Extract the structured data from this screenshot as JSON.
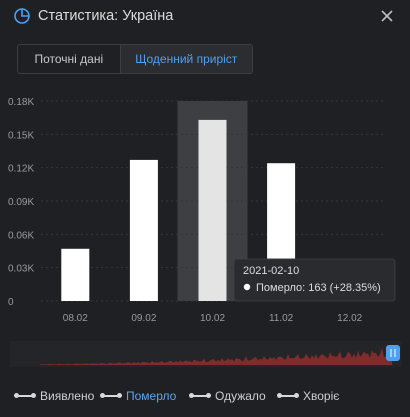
{
  "header": {
    "title": "Статистика: Україна",
    "icon": "pie-chart-icon",
    "close_icon": "close-icon"
  },
  "tabs": [
    {
      "label": "Поточні дані",
      "active": false
    },
    {
      "label": "Щоденний приріст",
      "active": true
    }
  ],
  "chart_data": {
    "type": "bar",
    "categories": [
      "08.02",
      "09.02",
      "10.02",
      "11.02",
      "12.02"
    ],
    "values": [
      47,
      127,
      163,
      124,
      null
    ],
    "ylim": [
      0,
      180
    ],
    "yticks": [
      0,
      30,
      60,
      90,
      120,
      150,
      180
    ],
    "ytick_labels": [
      "0",
      "0.03K",
      "0.06K",
      "0.09K",
      "0.12K",
      "0.15K",
      "0.18K"
    ],
    "grid": true,
    "bar_color": "#ffffff",
    "highlighted_category": "10.02",
    "tooltip": {
      "date": "2021-02-10",
      "label": "Померло",
      "value": "163",
      "change": "(+28.35%)"
    }
  },
  "legend": [
    {
      "label": "Виявлено",
      "active": false
    },
    {
      "label": "Померло",
      "active": true
    },
    {
      "label": "Одужало",
      "active": false
    },
    {
      "label": "Хворіє",
      "active": false
    }
  ],
  "colors": {
    "background": "#1f2023",
    "accent": "#4ea0f0",
    "overview_area": "#8a2d2a"
  }
}
